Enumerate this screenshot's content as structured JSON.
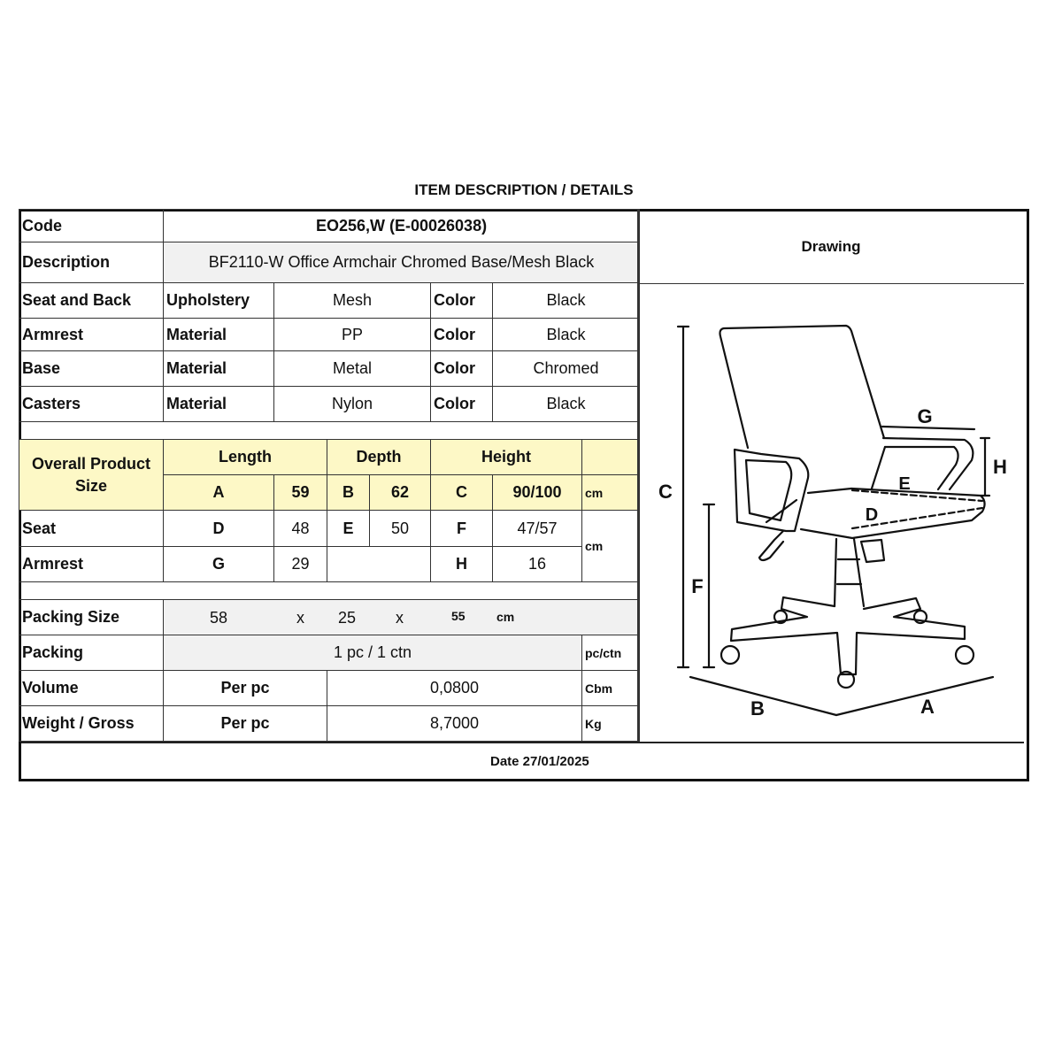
{
  "title": "ITEM DESCRIPTION / DETAILS",
  "code": {
    "label": "Code",
    "value": "EO256,W (E-00026038)"
  },
  "description": {
    "label": "Description",
    "value": "BF2110-W Office Armchair Chromed Base/Mesh Black"
  },
  "drawing_label": "Drawing",
  "components": [
    {
      "part": "Seat and Back",
      "attr": "Upholstery",
      "value": "Mesh",
      "color_label": "Color",
      "color": "Black"
    },
    {
      "part": "Armrest",
      "attr": "Material",
      "value": "PP",
      "color_label": "Color",
      "color": "Black"
    },
    {
      "part": "Base",
      "attr": "Material",
      "value": "Metal",
      "color_label": "Color",
      "color": "Chromed"
    },
    {
      "part": "Casters",
      "attr": "Material",
      "value": "Nylon",
      "color_label": "Color",
      "color": "Black"
    }
  ],
  "overall": {
    "label": "Overall Product Size",
    "length_label": "Length",
    "depth_label": "Depth",
    "height_label": "Height",
    "A": "A",
    "A_val": "59",
    "B": "B",
    "B_val": "62",
    "C": "C",
    "C_val": "90/100",
    "unit": "cm"
  },
  "seat": {
    "label": "Seat",
    "D": "D",
    "D_val": "48",
    "E": "E",
    "E_val": "50",
    "F": "F",
    "F_val": "47/57"
  },
  "armrest": {
    "label": "Armrest",
    "G": "G",
    "G_val": "29",
    "H": "H",
    "H_val": "16"
  },
  "dim_unit": "cm",
  "packing_size": {
    "label": "Packing Size",
    "l": "58",
    "x1": "x",
    "w": "25",
    "x2": "x",
    "h": "55",
    "unit": "cm"
  },
  "packing": {
    "label": "Packing",
    "value": "1 pc / 1 ctn",
    "unit": "pc/ctn"
  },
  "volume": {
    "label": "Volume",
    "per": "Per pc",
    "value": "0,0800",
    "unit": "Cbm"
  },
  "weight": {
    "label": "Weight / Gross",
    "per": "Per pc",
    "value": "8,7000",
    "unit": "Kg"
  },
  "date": "Date 27/01/2025",
  "drawing_letters": {
    "A": "A",
    "B": "B",
    "C": "C",
    "D": "D",
    "E": "E",
    "F": "F",
    "G": "G",
    "H": "H"
  },
  "colors": {
    "highlight": "#fdf8c6",
    "shaded": "#f1f1f1",
    "border": "#111111"
  }
}
